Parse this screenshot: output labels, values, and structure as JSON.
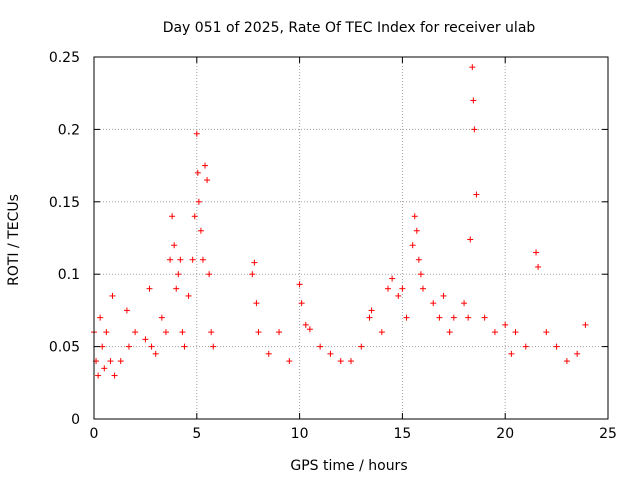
{
  "chart_data": {
    "type": "scatter",
    "title": "Day 051 of 2025, Rate Of TEC Index for receiver ulab",
    "xlabel": "GPS time / hours",
    "ylabel": "ROTI / TECUs",
    "xlim": [
      0,
      25
    ],
    "ylim": [
      0,
      0.25
    ],
    "x_ticks": [
      "0",
      "5",
      "10",
      "15",
      "20",
      "25"
    ],
    "y_ticks": [
      "0",
      "0.05",
      "0.1",
      "0.15",
      "0.2",
      "0.25"
    ],
    "grid": true,
    "legend": "none",
    "marker": "plus",
    "color": "#ff0000",
    "series": [
      {
        "x": [
          0.0,
          0.1,
          0.2,
          0.3,
          0.4,
          0.5,
          0.6,
          0.8,
          0.9,
          1.0,
          1.3,
          1.6,
          1.7,
          2.0,
          2.5,
          2.7,
          2.8,
          3.0,
          3.3,
          3.5,
          3.7,
          3.8,
          3.9,
          4.0,
          4.1,
          4.2,
          4.3,
          4.4,
          4.6,
          4.8,
          4.9,
          5.0,
          5.05,
          5.1,
          5.2,
          5.3,
          5.4,
          5.5,
          5.6,
          5.7,
          5.8,
          7.7,
          7.8,
          7.9,
          8.0,
          8.5,
          9.0,
          9.5,
          10.0,
          10.1,
          10.3,
          10.5,
          11.0,
          11.5,
          12.0,
          12.5,
          13.0,
          13.4,
          13.5,
          14.0,
          14.3,
          14.5,
          14.8,
          15.0,
          15.2,
          15.5,
          15.6,
          15.7,
          15.8,
          15.9,
          16.0,
          16.5,
          16.8,
          17.0,
          17.3,
          17.5,
          18.0,
          18.2,
          18.3,
          18.4,
          18.45,
          18.5,
          18.6,
          19.0,
          19.5,
          20.0,
          20.3,
          20.5,
          21.0,
          21.5,
          21.6,
          22.0,
          22.5,
          23.0,
          23.5,
          23.9
        ],
        "y": [
          0.06,
          0.04,
          0.03,
          0.07,
          0.05,
          0.035,
          0.06,
          0.04,
          0.085,
          0.03,
          0.04,
          0.075,
          0.05,
          0.06,
          0.055,
          0.09,
          0.05,
          0.045,
          0.07,
          0.06,
          0.11,
          0.14,
          0.12,
          0.09,
          0.1,
          0.11,
          0.06,
          0.05,
          0.085,
          0.11,
          0.14,
          0.197,
          0.17,
          0.15,
          0.13,
          0.11,
          0.175,
          0.165,
          0.1,
          0.06,
          0.05,
          0.1,
          0.108,
          0.08,
          0.06,
          0.045,
          0.06,
          0.04,
          0.093,
          0.08,
          0.065,
          0.062,
          0.05,
          0.045,
          0.04,
          0.04,
          0.05,
          0.07,
          0.075,
          0.06,
          0.09,
          0.097,
          0.085,
          0.09,
          0.07,
          0.12,
          0.14,
          0.13,
          0.11,
          0.1,
          0.09,
          0.08,
          0.07,
          0.085,
          0.06,
          0.07,
          0.08,
          0.07,
          0.124,
          0.243,
          0.22,
          0.2,
          0.155,
          0.07,
          0.06,
          0.065,
          0.045,
          0.06,
          0.05,
          0.115,
          0.105,
          0.06,
          0.05,
          0.04,
          0.045,
          0.065
        ]
      }
    ]
  }
}
